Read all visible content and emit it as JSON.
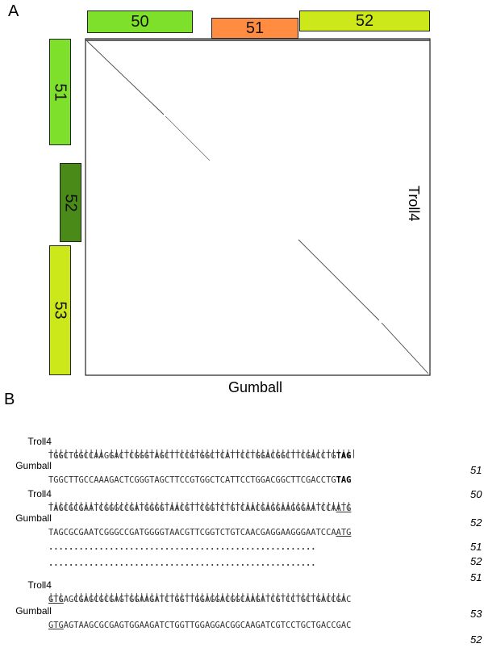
{
  "panels": {
    "a": "A",
    "b": "B"
  },
  "dotplot": {
    "x_axis_label": "Gumball",
    "y_axis_label": "Troll4",
    "top_genes": [
      {
        "label": "50",
        "color": "#7ee02a"
      },
      {
        "label": "51",
        "color": "#ff8c40"
      },
      {
        "label": "52",
        "color": "#cde81a"
      }
    ],
    "side_genes": [
      {
        "label": "51",
        "color": "#7ee02a"
      },
      {
        "label": "52",
        "color": "#4a8a18"
      },
      {
        "label": "53",
        "color": "#cde81a"
      }
    ]
  },
  "alignment": {
    "block1": {
      "troll_name": "Troll4",
      "troll_seq": "TGGCTGGCCAAGGACTCGGGTAGCTTCCGTGGCTCATTCCTGGACGGCTTCGACCTG",
      "troll_stop": "TAG",
      "troll_num": "51",
      "bars": "|||| |||||| |||||||||||||||||||||||||||||||||||||||||||||||||",
      "gumball_name": "Gumball",
      "gumball_seq": "TGGCTTGCCAAAGACTCGGGTAGCTTCCGTGGCTCATTCCTGGACGGCTTCGACCTG",
      "gumball_stop": "TAG",
      "gumball_num": "50"
    },
    "block2": {
      "troll_name": "Troll4",
      "troll_seq": "TAGCGCGAATCGGGCCGATGGGGTAACGTTCGGTCTGTCAACGAGGAAGGGAATCCA",
      "troll_start": "ATG",
      "troll_num": "52",
      "bars": "||||||||||||||||||||||||||||||||||||||||||||||||||||||||||||",
      "gumball_name": "Gumball",
      "gumball_seq": "TAGCGCGAATCGGGCCGATGGGGTAACGTTCGGTCTGTCAACGAGGAAGGGAATCCA",
      "gumball_start": "ATG",
      "gumball_num": "51"
    },
    "gap": {
      "dots": ".....................................................",
      "num1": "52",
      "num2": "51"
    },
    "block3": {
      "troll_name": "Troll4",
      "troll_start": "GTG",
      "troll_seq": "AGCGAGCGCGAGTGGAAGATCTGGTTGGAGGACGGCAAGATCGTCCTGCTGACCGAC",
      "troll_num": "53",
      "bars": "|||  ||||||||||||||||||||||||||||||||||||||||||||||||||||||",
      "gumball_name": "Gumball",
      "gumball_start": "GTG",
      "gumball_seq": "AGTAAGCGCGAGTGGAAGATCTGGTTGGAGGACGGCAAGATCGTCCTGCTGACCGAC",
      "gumball_num": "52"
    }
  }
}
